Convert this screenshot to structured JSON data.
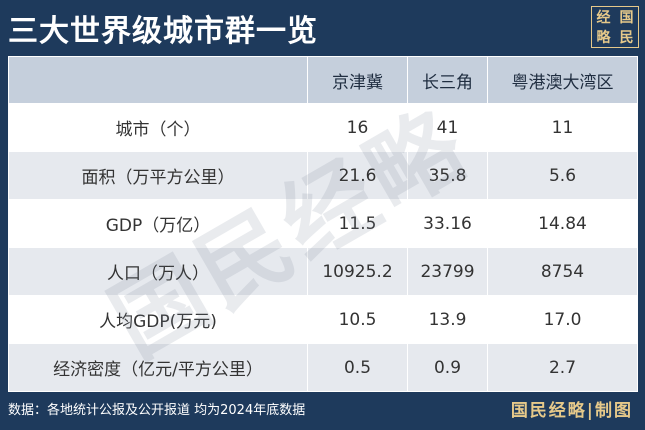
{
  "header": {
    "title": "三大世界级城市群一览",
    "logo": [
      "经",
      "国",
      "略",
      "民"
    ]
  },
  "table": {
    "columns": [
      "京津冀",
      "长三角",
      "粤港澳大湾区"
    ],
    "rows": [
      [
        "城市（个）",
        "16",
        "41",
        "11"
      ],
      [
        "面积（万平方公里）",
        "21.6",
        "35.8",
        "5.6"
      ],
      [
        "GDP（万亿）",
        "11.5",
        "33.16",
        "14.84"
      ],
      [
        "人口（万人）",
        "10925.2",
        "23799",
        "8754"
      ],
      [
        "人均GDP(万元)",
        "10.5",
        "13.9",
        "17.0"
      ],
      [
        "经济密度（亿元/平方公里）",
        "0.5",
        "0.9",
        "2.7"
      ]
    ]
  },
  "watermark": "国民经略",
  "footer": {
    "source": "数据：各地统计公报及公开报道 均为2024年底数据",
    "credit": "国民经略|制图"
  }
}
